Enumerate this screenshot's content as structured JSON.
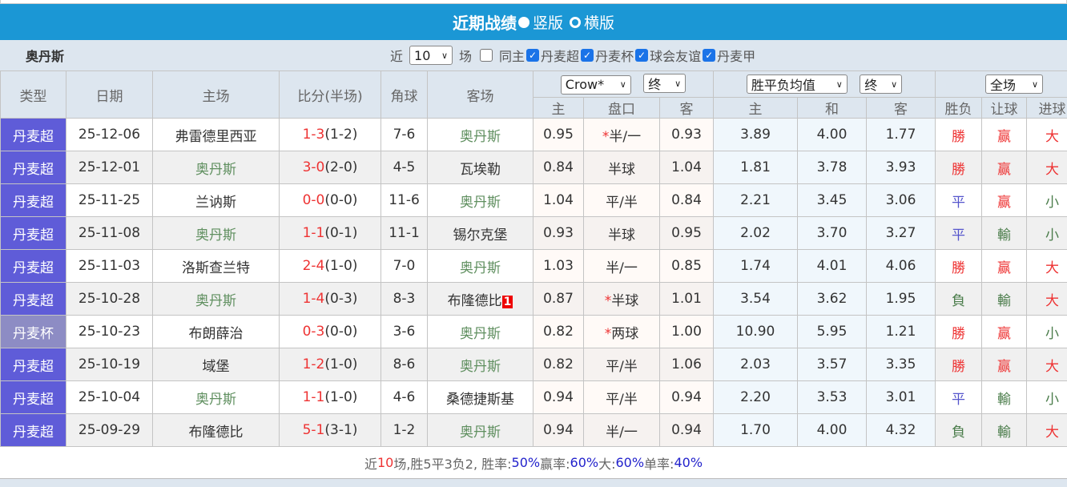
{
  "title": {
    "main": "近期战绩",
    "option1": "竖版",
    "option2": "横版",
    "option1_selected": true
  },
  "filter": {
    "team": "奥丹斯",
    "prefix": "近",
    "count": "10",
    "suffix": "场",
    "checkboxes": [
      {
        "label": "同主",
        "checked": false
      },
      {
        "label": "丹麦超",
        "checked": true
      },
      {
        "label": "丹麦杯",
        "checked": true
      },
      {
        "label": "球会友谊",
        "checked": true
      },
      {
        "label": "丹麦甲",
        "checked": true
      }
    ]
  },
  "headers": {
    "type": "类型",
    "date": "日期",
    "home": "主场",
    "score": "比分(半场)",
    "corner": "角球",
    "away": "客场",
    "ah_company": "Crow*",
    "ah_stage": "终",
    "x12_type": "胜平负均值",
    "x12_stage": "终",
    "result_scope": "全场",
    "ah_sub": [
      "主",
      "盘口",
      "客"
    ],
    "x12_sub": [
      "主",
      "和",
      "客"
    ],
    "res_sub": [
      "胜负",
      "让球",
      "进球"
    ]
  },
  "rows": [
    {
      "type": "丹麦超",
      "date": "25-12-06",
      "home": "弗雷德里西亚",
      "score": "1-3",
      "half": "(1-2)",
      "corner": "7-6",
      "away": "奥丹斯",
      "ah_h": "0.95",
      "line": "半/一",
      "star": true,
      "ah_a": "0.93",
      "w": "3.89",
      "d": "4.00",
      "l": "1.77",
      "r1": "勝",
      "r2": "赢",
      "r3": "大"
    },
    {
      "type": "丹麦超",
      "date": "25-12-01",
      "home": "奥丹斯",
      "score": "3-0",
      "half": "(2-0)",
      "corner": "4-5",
      "away": "瓦埃勒",
      "ah_h": "0.84",
      "line": "半球",
      "star": false,
      "ah_a": "1.04",
      "w": "1.81",
      "d": "3.78",
      "l": "3.93",
      "r1": "勝",
      "r2": "赢",
      "r3": "大"
    },
    {
      "type": "丹麦超",
      "date": "25-11-25",
      "home": "兰讷斯",
      "score": "0-0",
      "half": "(0-0)",
      "corner": "11-6",
      "away": "奥丹斯",
      "ah_h": "1.04",
      "line": "平/半",
      "star": false,
      "ah_a": "0.84",
      "w": "2.21",
      "d": "3.45",
      "l": "3.06",
      "r1": "平",
      "r2": "赢",
      "r3": "小"
    },
    {
      "type": "丹麦超",
      "date": "25-11-08",
      "home": "奥丹斯",
      "score": "1-1",
      "half": "(0-1)",
      "corner": "11-1",
      "away": "锡尔克堡",
      "ah_h": "0.93",
      "line": "半球",
      "star": false,
      "ah_a": "0.95",
      "w": "2.02",
      "d": "3.70",
      "l": "3.27",
      "r1": "平",
      "r2": "輸",
      "r3": "小"
    },
    {
      "type": "丹麦超",
      "date": "25-11-03",
      "home": "洛斯查兰特",
      "score": "2-4",
      "half": "(1-0)",
      "corner": "7-0",
      "away": "奥丹斯",
      "ah_h": "1.03",
      "line": "半/一",
      "star": false,
      "ah_a": "0.85",
      "w": "1.74",
      "d": "4.01",
      "l": "4.06",
      "r1": "勝",
      "r2": "赢",
      "r3": "大"
    },
    {
      "type": "丹麦超",
      "date": "25-10-28",
      "home": "奥丹斯",
      "score": "1-4",
      "half": "(0-3)",
      "corner": "8-3",
      "away": "布隆德比",
      "away_badge": "1",
      "ah_h": "0.87",
      "line": "半球",
      "star": true,
      "ah_a": "1.01",
      "w": "3.54",
      "d": "3.62",
      "l": "1.95",
      "r1": "負",
      "r2": "輸",
      "r3": "大"
    },
    {
      "type": "丹麦杯",
      "date": "25-10-23",
      "home": "布朗薛治",
      "score": "0-3",
      "half": "(0-0)",
      "corner": "3-6",
      "away": "奥丹斯",
      "ah_h": "0.82",
      "line": "两球",
      "star": true,
      "ah_a": "1.00",
      "w": "10.90",
      "d": "5.95",
      "l": "1.21",
      "r1": "勝",
      "r2": "赢",
      "r3": "小"
    },
    {
      "type": "丹麦超",
      "date": "25-10-19",
      "home": "域堡",
      "score": "1-2",
      "half": "(1-0)",
      "corner": "8-6",
      "away": "奥丹斯",
      "ah_h": "0.82",
      "line": "平/半",
      "star": false,
      "ah_a": "1.06",
      "w": "2.03",
      "d": "3.57",
      "l": "3.35",
      "r1": "勝",
      "r2": "赢",
      "r3": "大"
    },
    {
      "type": "丹麦超",
      "date": "25-10-04",
      "home": "奥丹斯",
      "score": "1-1",
      "half": "(1-0)",
      "corner": "4-6",
      "away": "桑德捷斯基",
      "ah_h": "0.94",
      "line": "平/半",
      "star": false,
      "ah_a": "0.94",
      "w": "2.20",
      "d": "3.53",
      "l": "3.01",
      "r1": "平",
      "r2": "輸",
      "r3": "小"
    },
    {
      "type": "丹麦超",
      "date": "25-09-29",
      "home": "布隆德比",
      "score": "5-1",
      "half": "(3-1)",
      "corner": "1-2",
      "away": "奥丹斯",
      "ah_h": "0.94",
      "line": "半/一",
      "star": false,
      "ah_a": "0.94",
      "w": "1.70",
      "d": "4.00",
      "l": "4.32",
      "r1": "負",
      "r2": "輸",
      "r3": "大"
    }
  ],
  "summary": {
    "p1": "近",
    "n": "10",
    "p2": "场,胜5平3负2, 胜率:",
    "win_rate": "50%",
    "p3": " 赢率:",
    "cover_rate": "60%",
    "p4": " 大:",
    "over_rate": "60%",
    "p5": " 单率:",
    "odd_rate": "40%"
  },
  "colors": {
    "title_bar": "#1b97d5",
    "league_super": "#5f5cd8",
    "league_cup": "#8d8cc4",
    "win": "#e33",
    "draw": "#55c",
    "loss": "#4a7c4a",
    "team": "#5f8f5f"
  }
}
